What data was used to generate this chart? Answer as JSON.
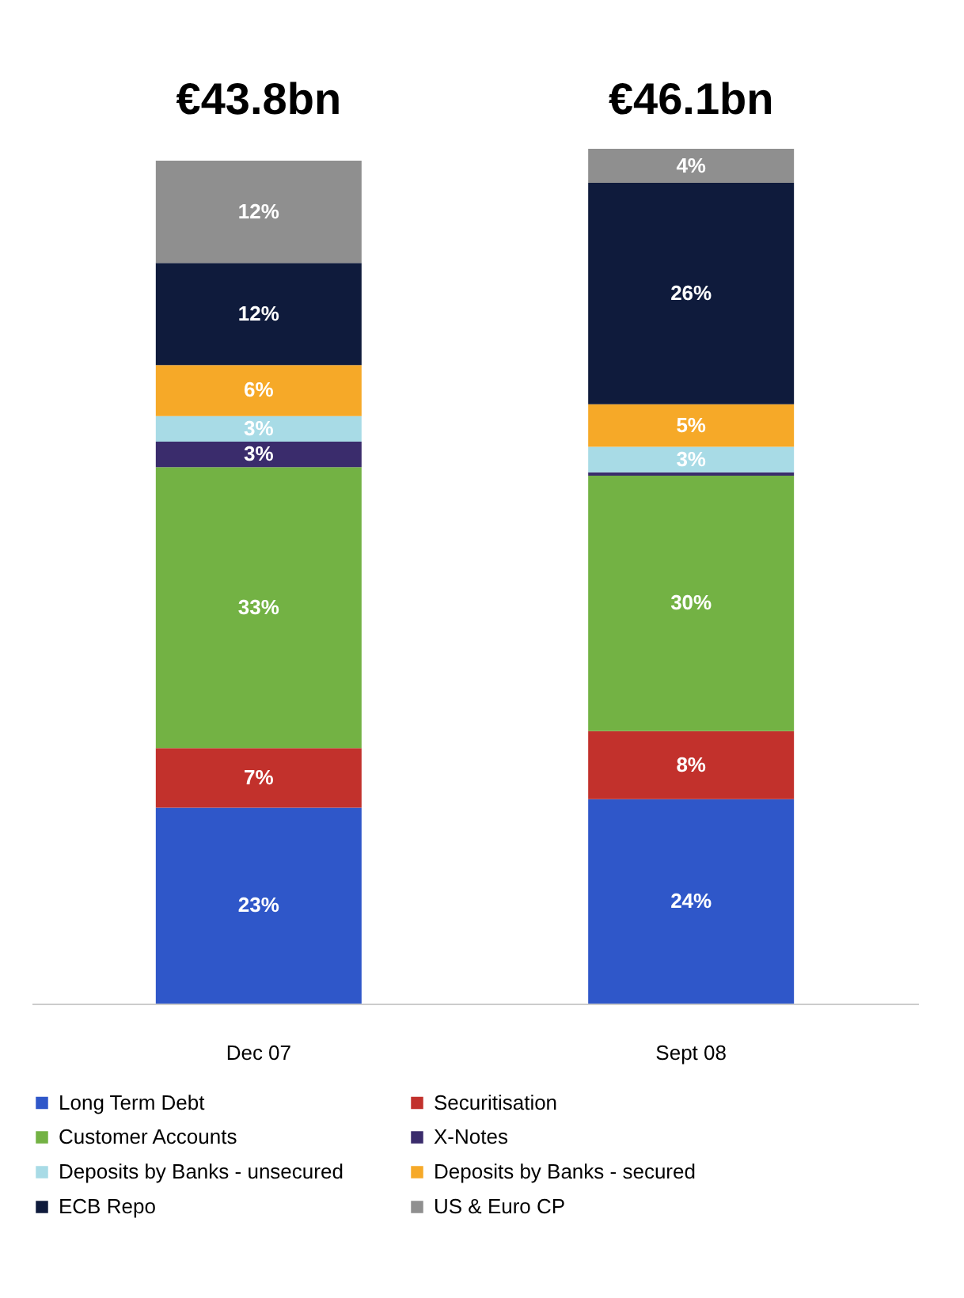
{
  "chart_data": {
    "type": "bar",
    "stacked": true,
    "legend": "bottom",
    "categories": [
      "Dec 07",
      "Sept 08"
    ],
    "annotations": [
      "€43.8bn",
      "€46.1bn"
    ],
    "series": [
      {
        "name": "Long Term Debt",
        "color": "#2f57c9",
        "values": [
          23,
          24
        ],
        "value_labels": [
          "23%",
          "24%"
        ]
      },
      {
        "name": "Securitisation",
        "color": "#c2312c",
        "values": [
          7,
          8
        ],
        "value_labels": [
          "7%",
          "8%"
        ]
      },
      {
        "name": "Customer Accounts",
        "color": "#73b244",
        "values": [
          33,
          30
        ],
        "value_labels": [
          "33%",
          "30%"
        ]
      },
      {
        "name": "X-Notes",
        "color": "#3a2c6c",
        "values": [
          3,
          0.4
        ],
        "value_labels": [
          "3%",
          null
        ]
      },
      {
        "name": "Deposits by Banks - unsecured",
        "color": "#a8dbe6",
        "values": [
          3,
          3
        ],
        "value_labels": [
          "3%",
          "3%"
        ]
      },
      {
        "name": "Deposits by Banks - secured",
        "color": "#f6a928",
        "values": [
          6,
          5
        ],
        "value_labels": [
          "6%",
          "5%"
        ]
      },
      {
        "name": "ECB Repo",
        "color": "#0f1b3c",
        "values": [
          12,
          26
        ],
        "value_labels": [
          "12%",
          "26%"
        ]
      },
      {
        "name": "US & Euro CP",
        "color": "#8f8f8f",
        "values": [
          12,
          4
        ],
        "value_labels": [
          "12%",
          "4%"
        ]
      }
    ]
  }
}
